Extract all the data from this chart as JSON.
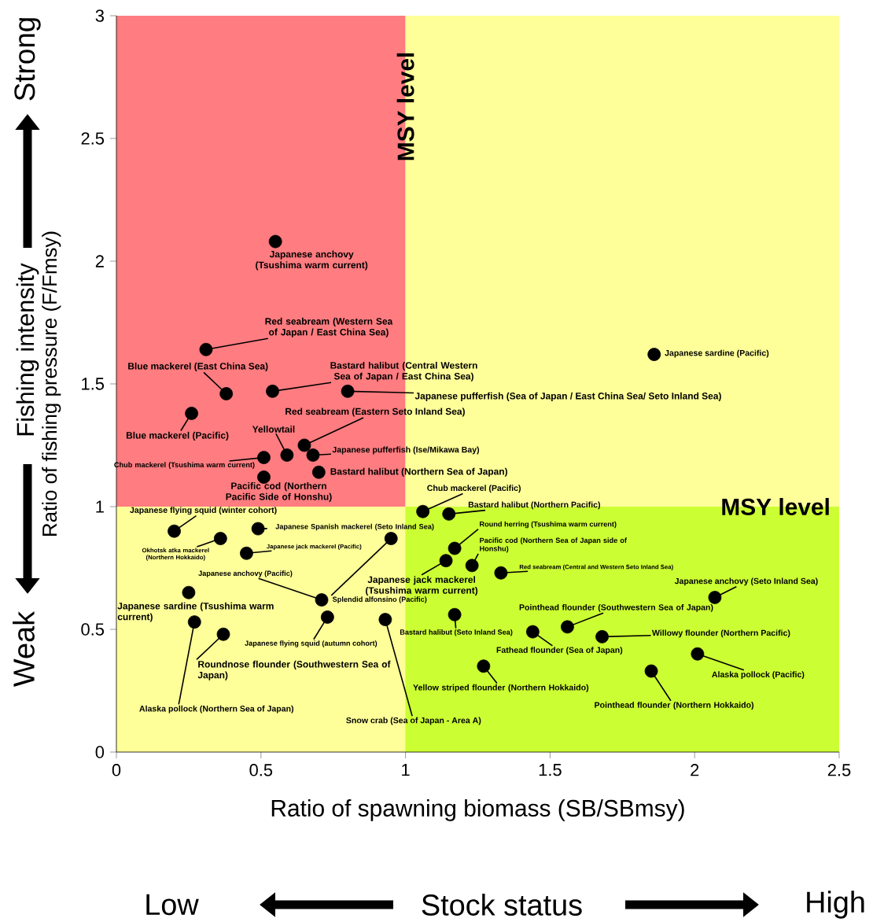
{
  "chart_data": {
    "type": "scatter",
    "xlabel": "Ratio of spawning biomass (SB/SBmsy)",
    "ylabel": "Ratio of fishing pressure (F/Fmsy)",
    "xlim": [
      0,
      2.5
    ],
    "ylim": [
      0,
      3
    ],
    "xticks": [
      0,
      0.5,
      1,
      1.5,
      2,
      2.5
    ],
    "yticks": [
      0,
      0.5,
      1,
      1.5,
      2,
      2.5,
      3
    ],
    "series": [
      {
        "type": "area",
        "color": "#ff7c80",
        "x": [
          0,
          1
        ],
        "values": [
          3,
          3
        ]
      },
      {
        "type": "area",
        "color": "#ffff99",
        "x": [
          1,
          2.5
        ],
        "values": [
          3,
          3
        ]
      },
      {
        "type": "area",
        "color": "#ffff99",
        "x": [
          0,
          1
        ],
        "values": [
          1,
          1
        ]
      },
      {
        "type": "area",
        "color": "#ccff33",
        "x": [
          1,
          2.5
        ],
        "values": [
          1,
          1
        ]
      },
      {
        "color": "#000000",
        "marker": "circle",
        "x": [
          0.55,
          0.31,
          0.38,
          0.54,
          0.8,
          0.26,
          0.65,
          0.59,
          0.68,
          0.51,
          0.51,
          0.7,
          1.06,
          1.15,
          0.2,
          0.49,
          0.36,
          0.45,
          0.95,
          0.71,
          1.14,
          1.17,
          1.23,
          1.33,
          2.07,
          0.25,
          0.73,
          0.93,
          1.17,
          0.27,
          0.37,
          1.44,
          1.56,
          1.68,
          1.27,
          2.01,
          1.85,
          1.86
        ],
        "values": [
          2.08,
          1.64,
          1.46,
          1.47,
          1.47,
          1.38,
          1.25,
          1.21,
          1.21,
          1.2,
          1.12,
          1.14,
          0.98,
          0.97,
          0.9,
          0.91,
          0.87,
          0.81,
          0.87,
          0.62,
          0.78,
          0.83,
          0.76,
          0.73,
          0.63,
          0.65,
          0.55,
          0.54,
          0.56,
          0.53,
          0.48,
          0.49,
          0.51,
          0.47,
          0.35,
          0.4,
          0.33,
          1.62
        ]
      }
    ],
    "annotations": [
      {
        "text": "Japanese anchovy (Tsushima warm current)",
        "x": 0.55,
        "y": 2.08
      },
      {
        "text": "Red seabream (Western Sea of Japan / East China Sea)",
        "x": 0.31,
        "y": 1.64
      },
      {
        "text": "Blue mackerel (East China Sea)",
        "x": 0.38,
        "y": 1.46
      },
      {
        "text": "Bastard halibut (Central Western Sea of Japan / East China Sea)",
        "x": 0.54,
        "y": 1.47
      },
      {
        "text": "Japanese pufferfish (Sea of Japan / East China Sea/ Seto Inland Sea)",
        "x": 0.8,
        "y": 1.47
      },
      {
        "text": "Blue mackerel (Pacific)",
        "x": 0.26,
        "y": 1.38
      },
      {
        "text": "Red seabream (Eastern Seto Inland Sea)",
        "x": 0.65,
        "y": 1.25
      },
      {
        "text": "Yellowtail",
        "x": 0.59,
        "y": 1.21
      },
      {
        "text": "Japanese pufferfish (Ise/Mikawa Bay)",
        "x": 0.68,
        "y": 1.21
      },
      {
        "text": "Chub mackerel (Tsushima warm current)",
        "x": 0.51,
        "y": 1.2
      },
      {
        "text": "Pacific cod (Northern Pacific Side of Honshu)",
        "x": 0.51,
        "y": 1.12
      },
      {
        "text": "Bastard halibut (Northern Sea of Japan)",
        "x": 0.7,
        "y": 1.14
      },
      {
        "text": "Chub mackerel (Pacific)",
        "x": 1.06,
        "y": 0.98
      },
      {
        "text": "Bastard halibut (Northern Pacific)",
        "x": 1.15,
        "y": 0.97
      },
      {
        "text": "Japanese flying squid (winter cohort)",
        "x": 0.2,
        "y": 0.9
      },
      {
        "text": "Japanese Spanish mackerel (Seto Inland Sea)",
        "x": 0.49,
        "y": 0.91
      },
      {
        "text": "Okhotsk atka mackerel (Northern Hokkaido)",
        "x": 0.36,
        "y": 0.87
      },
      {
        "text": "Japanese jack mackerel (Pacific)",
        "x": 0.45,
        "y": 0.81
      },
      {
        "text": "Splendid alfonsino (Pacific)",
        "x": 0.95,
        "y": 0.87
      },
      {
        "text": "Japanese anchovy (Pacific)",
        "x": 0.71,
        "y": 0.62
      },
      {
        "text": "Japanese jack mackerel (Tsushima warm current)",
        "x": 1.14,
        "y": 0.78
      },
      {
        "text": "Round herring (Tsushima warm current)",
        "x": 1.17,
        "y": 0.83
      },
      {
        "text": "Pacific cod (Northern Sea of Japan side of Honshu)",
        "x": 1.23,
        "y": 0.76
      },
      {
        "text": "Red seabream (Central and Western Seto Inland Sea)",
        "x": 1.33,
        "y": 0.73
      },
      {
        "text": "Japanese anchovy (Seto Inland Sea)",
        "x": 2.07,
        "y": 0.63
      },
      {
        "text": "Japanese sardine (Tsushima warm current)",
        "x": 0.25,
        "y": 0.65
      },
      {
        "text": "Japanese flying squid (autumn cohort)",
        "x": 0.73,
        "y": 0.55
      },
      {
        "text": "Snow crab (Sea of Japan - Area A)",
        "x": 0.93,
        "y": 0.54
      },
      {
        "text": "Bastard halibut (Seto Inland Sea)",
        "x": 1.17,
        "y": 0.56
      },
      {
        "text": "Alaska pollock (Northern Sea of Japan)",
        "x": 0.27,
        "y": 0.53
      },
      {
        "text": "Roundnose flounder (Southwestern Sea of Japan)",
        "x": 0.37,
        "y": 0.48
      },
      {
        "text": "Fathead flounder (Sea of Japan)",
        "x": 1.44,
        "y": 0.49
      },
      {
        "text": "Pointhead flounder (Southwestern Sea of Japan)",
        "x": 1.56,
        "y": 0.51
      },
      {
        "text": "Willowy flounder (Northern Pacific)",
        "x": 1.68,
        "y": 0.47
      },
      {
        "text": "Yellow striped flounder (Northern Hokkaido)",
        "x": 1.27,
        "y": 0.35
      },
      {
        "text": "Alaska pollock (Pacific)",
        "x": 2.01,
        "y": 0.4
      },
      {
        "text": "Pointhead flounder (Northern Hokkaido)",
        "x": 1.85,
        "y": 0.33
      },
      {
        "text": "Japanese sardine (Pacific)",
        "x": 1.86,
        "y": 1.62
      },
      {
        "text": "MSY level",
        "x": 1,
        "y": 2.63
      },
      {
        "text": "MSY level",
        "x": 2.28,
        "y": 1
      },
      "Fishing intensity",
      "Strong",
      "Weak",
      "Low",
      "Stock status",
      "High"
    ]
  }
}
